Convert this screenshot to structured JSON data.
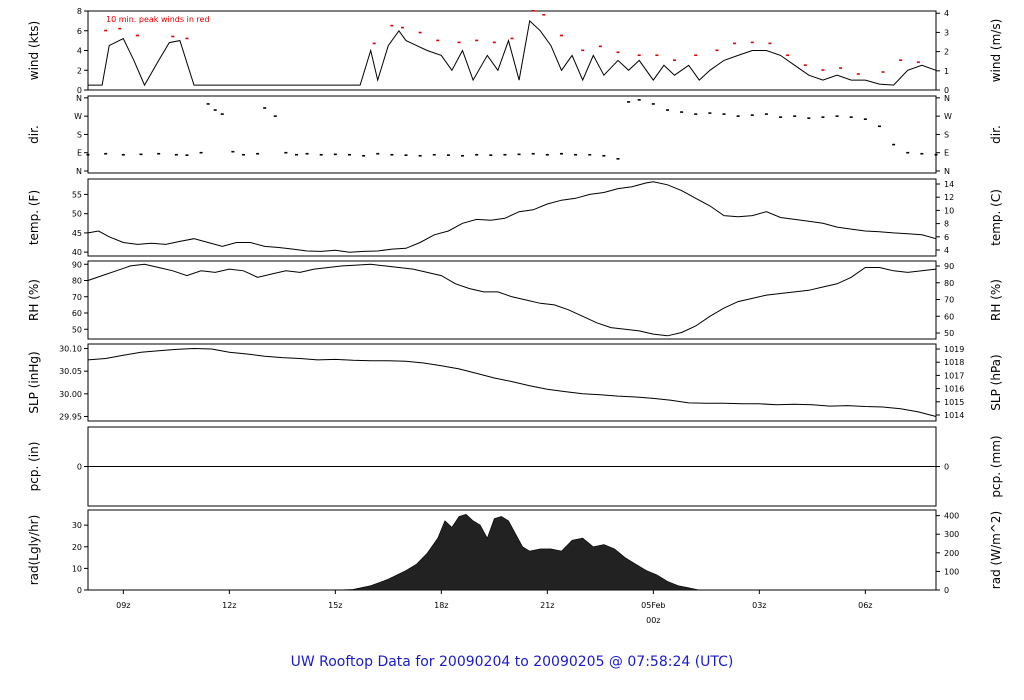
{
  "caption": "UW Rooftop Data for 20090204  to  20090205 @ 07:58:24  (UTC)",
  "annotation_peak": "10 min. peak winds in red",
  "colors": {
    "peak": "#dd0000",
    "caption": "#1a1acc",
    "zero_precip": "#cc0000",
    "date_label": "#cc0000"
  },
  "x_axis": {
    "ticks": [
      {
        "t": 1,
        "label": "09z"
      },
      {
        "t": 4,
        "label": "12z"
      },
      {
        "t": 7,
        "label": "15z"
      },
      {
        "t": 10,
        "label": "18z"
      },
      {
        "t": 13,
        "label": "21z"
      },
      {
        "t": 16,
        "label": "05Feb",
        "label2": "00z",
        "highlight": true
      },
      {
        "t": 19,
        "label": "03z"
      },
      {
        "t": 22,
        "label": "06z"
      }
    ],
    "range_hours": [
      0,
      24
    ]
  },
  "chart_data": [
    {
      "id": "wind",
      "type": "line",
      "ylabel": "wind (kts)",
      "ylabel_right": "wind (m/s)",
      "ylim": [
        0,
        8
      ],
      "ticks_left": [
        0,
        2,
        4,
        6,
        8
      ],
      "ticks_right": [
        0,
        1,
        2,
        3,
        4
      ],
      "right_factor": 0.5144,
      "x": [
        0.0,
        0.4,
        0.6,
        1.0,
        1.3,
        1.6,
        2.0,
        2.3,
        2.6,
        3.0,
        3.2,
        7.7,
        8.0,
        8.2,
        8.5,
        8.8,
        9.0,
        9.3,
        9.6,
        10.0,
        10.3,
        10.6,
        10.9,
        11.3,
        11.6,
        11.9,
        12.2,
        12.5,
        12.8,
        13.1,
        13.4,
        13.7,
        14.0,
        14.3,
        14.6,
        15.0,
        15.3,
        15.6,
        16.0,
        16.3,
        16.6,
        17.0,
        17.3,
        17.6,
        18.0,
        18.4,
        18.8,
        19.2,
        19.6,
        20.0,
        20.4,
        20.8,
        21.2,
        21.6,
        22.0,
        22.4,
        22.8,
        23.2,
        23.6,
        24.0
      ],
      "y": [
        0.5,
        0.5,
        4.5,
        5.2,
        3.0,
        0.5,
        3.0,
        4.8,
        5.0,
        0.5,
        0.5,
        0.5,
        4.0,
        1.0,
        4.5,
        6.0,
        5.0,
        4.5,
        4.0,
        3.5,
        2.0,
        4.0,
        1.0,
        3.5,
        2.0,
        5.0,
        1.0,
        7.0,
        6.0,
        4.5,
        2.0,
        3.5,
        1.0,
        3.5,
        1.5,
        3.0,
        2.0,
        3.0,
        1.0,
        2.5,
        1.5,
        2.5,
        1.0,
        2.0,
        3.0,
        3.5,
        4.0,
        4.0,
        3.5,
        2.5,
        1.5,
        1.0,
        1.5,
        1.0,
        1.0,
        0.6,
        0.5,
        2.0,
        2.5,
        2.0
      ],
      "peak_x": [
        0.5,
        0.9,
        1.4,
        2.4,
        2.8,
        8.1,
        8.6,
        8.9,
        9.4,
        9.9,
        10.5,
        11.0,
        11.5,
        12.0,
        12.6,
        12.9,
        13.4,
        14.0,
        14.5,
        15.0,
        15.6,
        16.1,
        16.6,
        17.2,
        17.8,
        18.3,
        18.8,
        19.3,
        19.8,
        20.3,
        20.8,
        21.3,
        21.8,
        22.5,
        23.0,
        23.5
      ],
      "peak_y": [
        6.0,
        6.2,
        5.5,
        5.4,
        5.2,
        4.7,
        6.5,
        6.3,
        5.8,
        5.0,
        4.8,
        5.0,
        4.8,
        5.2,
        8.0,
        7.6,
        5.5,
        4.0,
        4.4,
        3.8,
        3.5,
        3.5,
        3.0,
        3.5,
        4.0,
        4.7,
        4.8,
        4.7,
        3.5,
        2.5,
        2.0,
        2.2,
        1.6,
        1.8,
        3.0,
        2.8
      ]
    },
    {
      "id": "dir",
      "type": "scatter",
      "ylabel": "dir.",
      "ylabel_right": "dir.",
      "ylim": [
        0,
        360
      ],
      "ticks_left": [
        "N",
        "E",
        "S",
        "W",
        "N"
      ],
      "ticks_right": [
        "N",
        "E",
        "S",
        "W",
        "N"
      ],
      "x": [
        0.0,
        0.5,
        1.0,
        1.5,
        2.0,
        2.5,
        2.8,
        3.2,
        3.4,
        3.6,
        3.8,
        4.1,
        4.4,
        4.8,
        5.0,
        5.3,
        5.6,
        5.9,
        6.2,
        6.6,
        7.0,
        7.4,
        7.8,
        8.2,
        8.6,
        9.0,
        9.4,
        9.8,
        10.2,
        10.6,
        11.0,
        11.4,
        11.8,
        12.2,
        12.6,
        13.0,
        13.4,
        13.8,
        14.2,
        14.6,
        15.0,
        15.3,
        15.6,
        16.0,
        16.4,
        16.8,
        17.2,
        17.6,
        18.0,
        18.4,
        18.8,
        19.2,
        19.6,
        20.0,
        20.4,
        20.8,
        21.2,
        21.6,
        22.0,
        22.4,
        22.8,
        23.2,
        23.6,
        24.0
      ],
      "y": [
        80,
        85,
        80,
        82,
        85,
        80,
        78,
        90,
        330,
        300,
        280,
        95,
        80,
        85,
        310,
        270,
        90,
        80,
        85,
        80,
        82,
        80,
        75,
        85,
        80,
        78,
        75,
        80,
        78,
        75,
        80,
        78,
        80,
        82,
        85,
        80,
        85,
        80,
        80,
        75,
        60,
        340,
        350,
        330,
        300,
        290,
        280,
        285,
        280,
        270,
        275,
        280,
        265,
        270,
        260,
        265,
        270,
        265,
        255,
        220,
        130,
        90,
        85,
        80
      ]
    },
    {
      "id": "temp",
      "type": "line",
      "ylabel": "temp. (F)",
      "ylabel_right": "temp. (C)",
      "ylim": [
        39,
        59
      ],
      "ticks_left": [
        40,
        45,
        50,
        55
      ],
      "ticks_right": [
        4,
        6,
        8,
        10,
        12,
        14
      ],
      "x": [
        0.0,
        0.3,
        0.6,
        1.0,
        1.4,
        1.8,
        2.2,
        2.6,
        3.0,
        3.4,
        3.8,
        4.2,
        4.6,
        5.0,
        5.4,
        5.8,
        6.2,
        6.6,
        7.0,
        7.4,
        7.8,
        8.2,
        8.6,
        9.0,
        9.4,
        9.8,
        10.2,
        10.6,
        11.0,
        11.4,
        11.8,
        12.2,
        12.6,
        13.0,
        13.4,
        13.8,
        14.2,
        14.6,
        15.0,
        15.4,
        15.8,
        16.0,
        16.4,
        16.8,
        17.2,
        17.6,
        18.0,
        18.4,
        18.8,
        19.2,
        19.6,
        20.0,
        20.4,
        20.8,
        21.2,
        21.6,
        22.0,
        22.4,
        22.8,
        23.2,
        23.6,
        24.0
      ],
      "y": [
        45,
        45.5,
        44,
        42.5,
        42,
        42.3,
        42,
        42.8,
        43.5,
        42.5,
        41.5,
        42.5,
        42.5,
        41.5,
        41.2,
        40.8,
        40.3,
        40.2,
        40.5,
        40.0,
        40.2,
        40.3,
        40.8,
        41.0,
        42.5,
        44.5,
        45.5,
        47.5,
        48.5,
        48.3,
        48.8,
        50.5,
        51.0,
        52.5,
        53.5,
        54.0,
        55.0,
        55.5,
        56.5,
        57.0,
        58.0,
        58.3,
        57.5,
        56.0,
        54.0,
        52.0,
        49.5,
        49.2,
        49.5,
        50.5,
        49.0,
        48.5,
        48.0,
        47.5,
        46.5,
        46.0,
        45.5,
        45.3,
        45.0,
        44.8,
        44.5,
        43.5
      ]
    },
    {
      "id": "rh",
      "type": "line",
      "ylabel": "RH (%)",
      "ylabel_right": "RH (%)",
      "ylim": [
        44,
        92
      ],
      "ticks_left": [
        50,
        60,
        70,
        80,
        90
      ],
      "ticks_right": [
        50,
        60,
        70,
        80,
        90
      ],
      "x": [
        0.0,
        0.4,
        0.8,
        1.2,
        1.6,
        2.0,
        2.4,
        2.8,
        3.2,
        3.6,
        4.0,
        4.4,
        4.8,
        5.2,
        5.6,
        6.0,
        6.4,
        6.8,
        7.2,
        7.6,
        8.0,
        8.4,
        8.8,
        9.2,
        9.6,
        10.0,
        10.4,
        10.8,
        11.2,
        11.6,
        12.0,
        12.4,
        12.8,
        13.2,
        13.6,
        14.0,
        14.4,
        14.8,
        15.2,
        15.6,
        16.0,
        16.4,
        16.8,
        17.2,
        17.6,
        18.0,
        18.4,
        18.8,
        19.2,
        19.6,
        20.0,
        20.4,
        20.8,
        21.2,
        21.6,
        22.0,
        22.4,
        22.8,
        23.2,
        23.6,
        24.0
      ],
      "y": [
        80,
        83,
        86,
        89,
        90,
        88,
        86,
        83,
        86,
        85,
        87,
        86,
        82,
        84,
        86,
        85,
        87,
        88,
        89,
        89.5,
        90,
        89,
        88,
        87,
        85,
        83,
        78,
        75,
        73,
        73,
        70,
        68,
        66,
        65,
        62,
        58,
        54,
        51,
        50,
        49,
        47,
        46,
        48,
        52,
        58,
        63,
        67,
        69,
        71,
        72,
        73,
        74,
        76,
        78,
        82,
        88,
        88,
        86,
        85,
        86,
        87
      ]
    },
    {
      "id": "slp",
      "type": "line",
      "ylabel": "SLP (inHg)",
      "ylabel_right": "SLP (hPa)",
      "ylim": [
        29.94,
        30.11
      ],
      "ticks_left": [
        "29.95",
        "30.00",
        "30.05",
        "30.10"
      ],
      "ticks_right": [
        1014,
        1015,
        1016,
        1017,
        1018,
        1019
      ],
      "x": [
        0.0,
        0.5,
        1.0,
        1.5,
        2.0,
        2.5,
        3.0,
        3.5,
        4.0,
        4.5,
        5.0,
        5.5,
        6.0,
        6.5,
        7.0,
        7.5,
        8.0,
        8.5,
        9.0,
        9.5,
        10.0,
        10.5,
        11.0,
        11.5,
        12.0,
        12.5,
        13.0,
        13.5,
        14.0,
        14.5,
        15.0,
        15.5,
        16.0,
        16.5,
        17.0,
        17.5,
        18.0,
        18.5,
        19.0,
        19.5,
        20.0,
        20.5,
        21.0,
        21.5,
        22.0,
        22.5,
        23.0,
        23.5,
        24.0
      ],
      "y": [
        30.075,
        30.078,
        30.085,
        30.092,
        30.095,
        30.098,
        30.1,
        30.099,
        30.092,
        30.088,
        30.083,
        30.08,
        30.078,
        30.075,
        30.076,
        30.074,
        30.073,
        30.073,
        30.072,
        30.068,
        30.062,
        30.055,
        30.045,
        30.035,
        30.027,
        30.018,
        30.01,
        30.005,
        30.0,
        29.998,
        29.995,
        29.993,
        29.99,
        29.986,
        29.98,
        29.979,
        29.979,
        29.978,
        29.978,
        29.976,
        29.977,
        29.976,
        29.973,
        29.974,
        29.972,
        29.971,
        29.967,
        29.96,
        29.95
      ]
    },
    {
      "id": "pcp",
      "type": "line",
      "ylabel": "pcp. (in)",
      "ylabel_right": "pcp. (mm)",
      "ylim": [
        -1,
        1
      ],
      "ticks_left": [
        0
      ],
      "ticks_right": [
        0
      ],
      "x": [
        0,
        24
      ],
      "y": [
        0,
        0
      ]
    },
    {
      "id": "rad",
      "type": "area",
      "ylabel": "rad(Lgly/hr)",
      "ylabel_right": "rad (W/m^2)",
      "ylim": [
        0,
        37
      ],
      "ticks_left": [
        0,
        10,
        20,
        30
      ],
      "ticks_right": [
        0,
        100,
        200,
        300,
        400
      ],
      "right_factor": 11.63,
      "x": [
        0.0,
        7.0,
        7.5,
        8.0,
        8.5,
        9.0,
        9.3,
        9.6,
        9.9,
        10.1,
        10.3,
        10.5,
        10.7,
        10.9,
        11.1,
        11.3,
        11.5,
        11.7,
        11.9,
        12.1,
        12.3,
        12.5,
        12.8,
        13.1,
        13.4,
        13.7,
        14.0,
        14.3,
        14.6,
        14.9,
        15.2,
        15.5,
        15.8,
        16.1,
        16.4,
        16.7,
        17.0,
        17.3,
        24.0
      ],
      "y": [
        0,
        0,
        0.3,
        2,
        5,
        9,
        12,
        17,
        24,
        32,
        29,
        34,
        35,
        32,
        30,
        24,
        33,
        34,
        32,
        26,
        20,
        18,
        19,
        19,
        18,
        23,
        24,
        20,
        21,
        19,
        15,
        12,
        9,
        7,
        4,
        2,
        1,
        0,
        0
      ]
    }
  ]
}
